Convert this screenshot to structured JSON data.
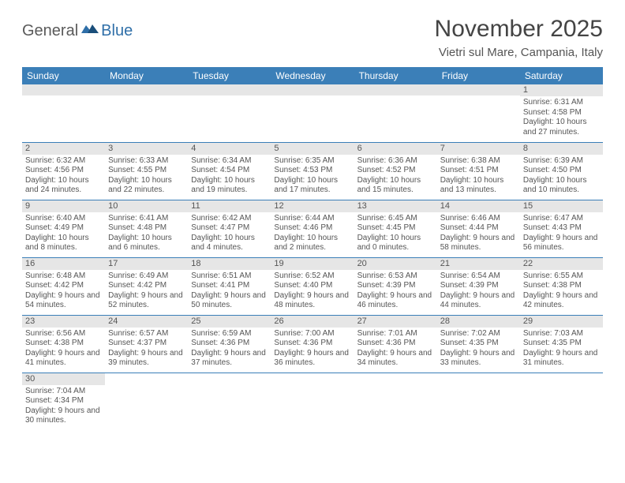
{
  "logo": {
    "text1": "General",
    "text2": "Blue"
  },
  "title": "November 2025",
  "location": "Vietri sul Mare, Campania, Italy",
  "colors": {
    "header_bg": "#3b7fb8",
    "header_text": "#ffffff",
    "daynum_bg": "#e6e6e6",
    "text": "#555555",
    "border": "#3b7fb8"
  },
  "weekdays": [
    "Sunday",
    "Monday",
    "Tuesday",
    "Wednesday",
    "Thursday",
    "Friday",
    "Saturday"
  ],
  "weeks": [
    [
      null,
      null,
      null,
      null,
      null,
      null,
      {
        "n": "1",
        "sr": "Sunrise: 6:31 AM",
        "ss": "Sunset: 4:58 PM",
        "dl": "Daylight: 10 hours and 27 minutes."
      }
    ],
    [
      {
        "n": "2",
        "sr": "Sunrise: 6:32 AM",
        "ss": "Sunset: 4:56 PM",
        "dl": "Daylight: 10 hours and 24 minutes."
      },
      {
        "n": "3",
        "sr": "Sunrise: 6:33 AM",
        "ss": "Sunset: 4:55 PM",
        "dl": "Daylight: 10 hours and 22 minutes."
      },
      {
        "n": "4",
        "sr": "Sunrise: 6:34 AM",
        "ss": "Sunset: 4:54 PM",
        "dl": "Daylight: 10 hours and 19 minutes."
      },
      {
        "n": "5",
        "sr": "Sunrise: 6:35 AM",
        "ss": "Sunset: 4:53 PM",
        "dl": "Daylight: 10 hours and 17 minutes."
      },
      {
        "n": "6",
        "sr": "Sunrise: 6:36 AM",
        "ss": "Sunset: 4:52 PM",
        "dl": "Daylight: 10 hours and 15 minutes."
      },
      {
        "n": "7",
        "sr": "Sunrise: 6:38 AM",
        "ss": "Sunset: 4:51 PM",
        "dl": "Daylight: 10 hours and 13 minutes."
      },
      {
        "n": "8",
        "sr": "Sunrise: 6:39 AM",
        "ss": "Sunset: 4:50 PM",
        "dl": "Daylight: 10 hours and 10 minutes."
      }
    ],
    [
      {
        "n": "9",
        "sr": "Sunrise: 6:40 AM",
        "ss": "Sunset: 4:49 PM",
        "dl": "Daylight: 10 hours and 8 minutes."
      },
      {
        "n": "10",
        "sr": "Sunrise: 6:41 AM",
        "ss": "Sunset: 4:48 PM",
        "dl": "Daylight: 10 hours and 6 minutes."
      },
      {
        "n": "11",
        "sr": "Sunrise: 6:42 AM",
        "ss": "Sunset: 4:47 PM",
        "dl": "Daylight: 10 hours and 4 minutes."
      },
      {
        "n": "12",
        "sr": "Sunrise: 6:44 AM",
        "ss": "Sunset: 4:46 PM",
        "dl": "Daylight: 10 hours and 2 minutes."
      },
      {
        "n": "13",
        "sr": "Sunrise: 6:45 AM",
        "ss": "Sunset: 4:45 PM",
        "dl": "Daylight: 10 hours and 0 minutes."
      },
      {
        "n": "14",
        "sr": "Sunrise: 6:46 AM",
        "ss": "Sunset: 4:44 PM",
        "dl": "Daylight: 9 hours and 58 minutes."
      },
      {
        "n": "15",
        "sr": "Sunrise: 6:47 AM",
        "ss": "Sunset: 4:43 PM",
        "dl": "Daylight: 9 hours and 56 minutes."
      }
    ],
    [
      {
        "n": "16",
        "sr": "Sunrise: 6:48 AM",
        "ss": "Sunset: 4:42 PM",
        "dl": "Daylight: 9 hours and 54 minutes."
      },
      {
        "n": "17",
        "sr": "Sunrise: 6:49 AM",
        "ss": "Sunset: 4:42 PM",
        "dl": "Daylight: 9 hours and 52 minutes."
      },
      {
        "n": "18",
        "sr": "Sunrise: 6:51 AM",
        "ss": "Sunset: 4:41 PM",
        "dl": "Daylight: 9 hours and 50 minutes."
      },
      {
        "n": "19",
        "sr": "Sunrise: 6:52 AM",
        "ss": "Sunset: 4:40 PM",
        "dl": "Daylight: 9 hours and 48 minutes."
      },
      {
        "n": "20",
        "sr": "Sunrise: 6:53 AM",
        "ss": "Sunset: 4:39 PM",
        "dl": "Daylight: 9 hours and 46 minutes."
      },
      {
        "n": "21",
        "sr": "Sunrise: 6:54 AM",
        "ss": "Sunset: 4:39 PM",
        "dl": "Daylight: 9 hours and 44 minutes."
      },
      {
        "n": "22",
        "sr": "Sunrise: 6:55 AM",
        "ss": "Sunset: 4:38 PM",
        "dl": "Daylight: 9 hours and 42 minutes."
      }
    ],
    [
      {
        "n": "23",
        "sr": "Sunrise: 6:56 AM",
        "ss": "Sunset: 4:38 PM",
        "dl": "Daylight: 9 hours and 41 minutes."
      },
      {
        "n": "24",
        "sr": "Sunrise: 6:57 AM",
        "ss": "Sunset: 4:37 PM",
        "dl": "Daylight: 9 hours and 39 minutes."
      },
      {
        "n": "25",
        "sr": "Sunrise: 6:59 AM",
        "ss": "Sunset: 4:36 PM",
        "dl": "Daylight: 9 hours and 37 minutes."
      },
      {
        "n": "26",
        "sr": "Sunrise: 7:00 AM",
        "ss": "Sunset: 4:36 PM",
        "dl": "Daylight: 9 hours and 36 minutes."
      },
      {
        "n": "27",
        "sr": "Sunrise: 7:01 AM",
        "ss": "Sunset: 4:36 PM",
        "dl": "Daylight: 9 hours and 34 minutes."
      },
      {
        "n": "28",
        "sr": "Sunrise: 7:02 AM",
        "ss": "Sunset: 4:35 PM",
        "dl": "Daylight: 9 hours and 33 minutes."
      },
      {
        "n": "29",
        "sr": "Sunrise: 7:03 AM",
        "ss": "Sunset: 4:35 PM",
        "dl": "Daylight: 9 hours and 31 minutes."
      }
    ],
    [
      {
        "n": "30",
        "sr": "Sunrise: 7:04 AM",
        "ss": "Sunset: 4:34 PM",
        "dl": "Daylight: 9 hours and 30 minutes."
      },
      null,
      null,
      null,
      null,
      null,
      null
    ]
  ]
}
